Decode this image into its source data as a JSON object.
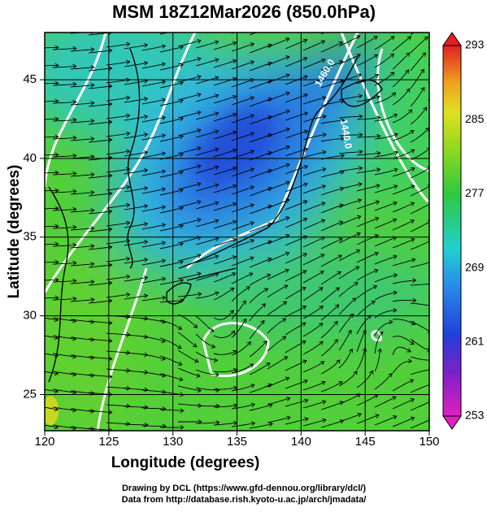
{
  "chart_data": {
    "type": "map",
    "title": "MSM 18Z12Mar2026 (850.0hPa)",
    "x_label": "Longitude (degrees)",
    "y_label": "Latitude  (degrees)",
    "xlim": [
      120,
      150
    ],
    "ylim": [
      22.7,
      48
    ],
    "xticks": [
      120,
      125,
      130,
      135,
      140,
      145,
      150
    ],
    "yticks": [
      25,
      30,
      35,
      40,
      45
    ],
    "grid": true,
    "colorbar": {
      "clim": [
        253,
        293
      ],
      "ticks": [
        253,
        261,
        269,
        277,
        285,
        293
      ]
    },
    "contour_labels": [
      "1460.0",
      "1440.0"
    ],
    "footer": [
      "Drawing by DCL (https://www.gfd-dennou.org/library/dcl/)",
      "Data from http://database.rish.kyoto-u.ac.jp/arch/jmadata/"
    ]
  }
}
